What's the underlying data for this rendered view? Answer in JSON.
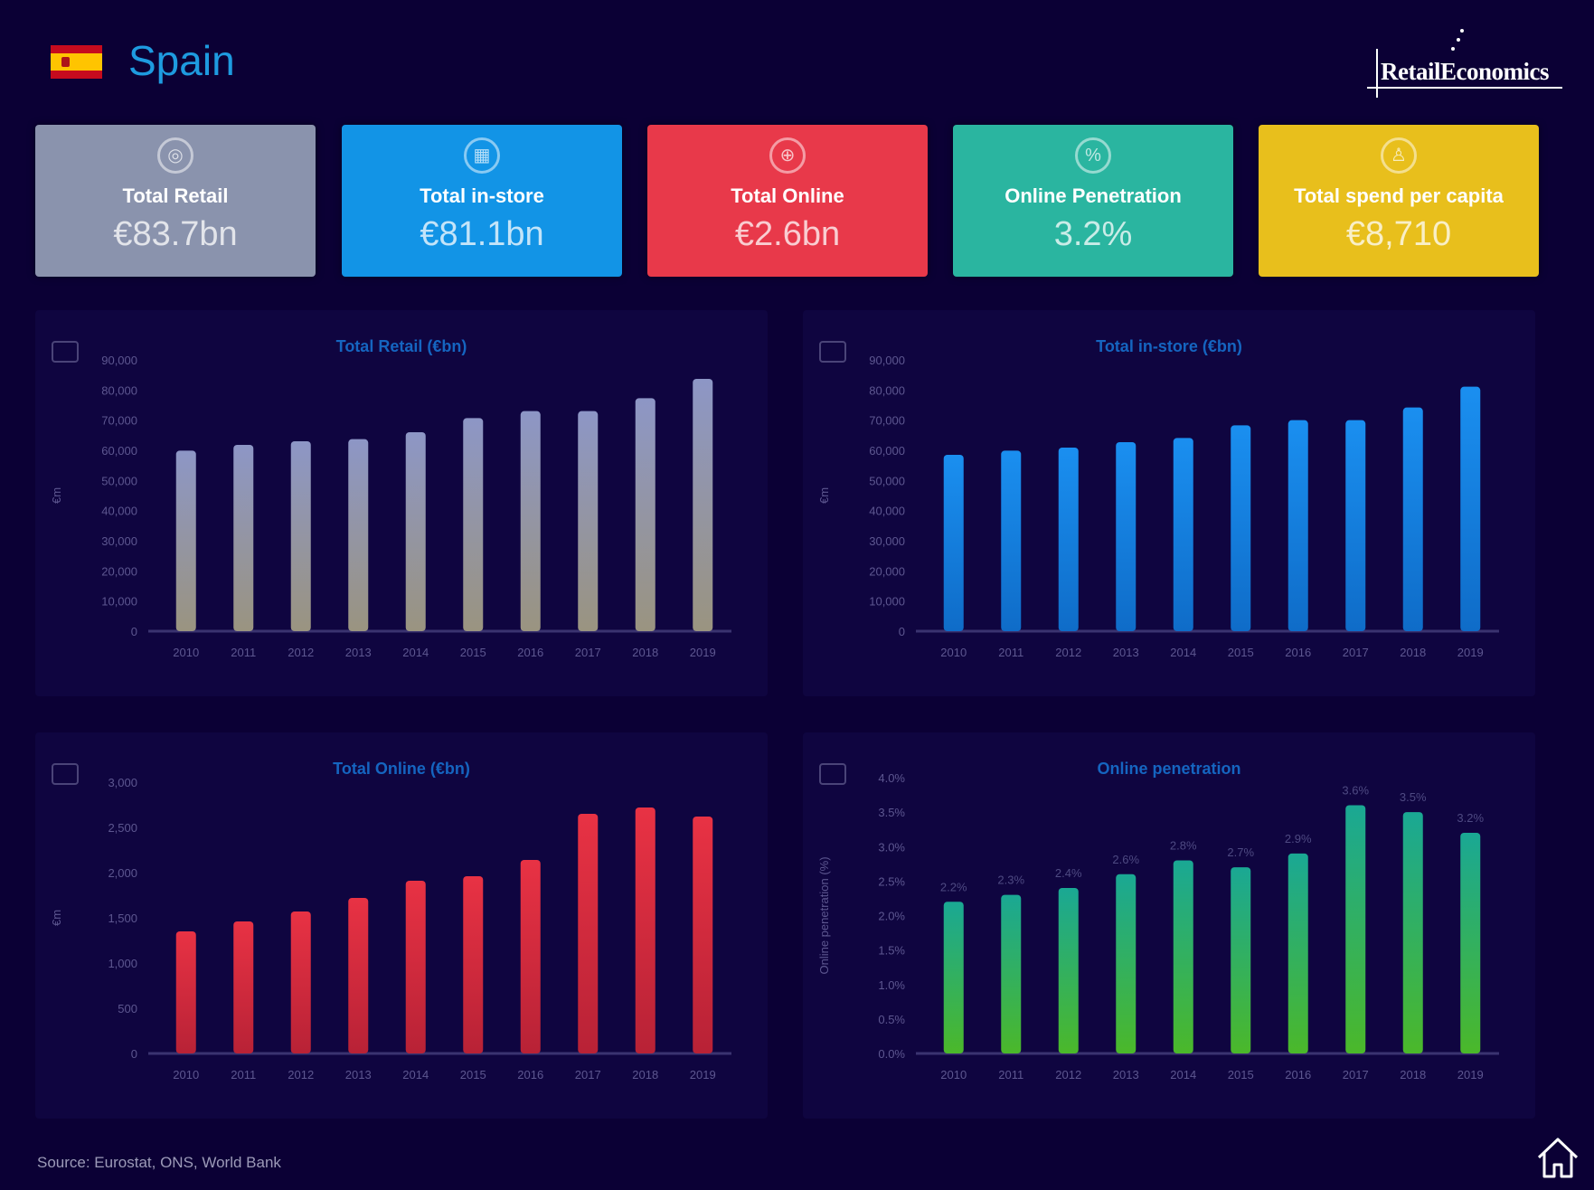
{
  "header": {
    "country": "Spain",
    "logo_text": "RetailEconomics"
  },
  "kpis": [
    {
      "label": "Total Retail",
      "value": "€83.7bn",
      "icon": "globe-icon",
      "color": "#8a93ad"
    },
    {
      "label": "Total in-store",
      "value": "€81.1bn",
      "icon": "store-icon",
      "color": "#1294e6"
    },
    {
      "label": "Total Online",
      "value": "€2.6bn",
      "icon": "cart-icon",
      "color": "#e8394a"
    },
    {
      "label": "Online Penetration",
      "value": "3.2%",
      "icon": "percent-icon",
      "color": "#2ab5a0"
    },
    {
      "label": "Total spend per capita",
      "value": "€8,710",
      "icon": "person-icon",
      "color": "#e8bf1c"
    }
  ],
  "chart_data": [
    {
      "type": "bar",
      "title": "Total Retail (€bn)",
      "ylabel": "€m",
      "ylim": [
        0,
        90000
      ],
      "ystep": 10000,
      "yfmt": "num",
      "categories": [
        "2010",
        "2011",
        "2012",
        "2013",
        "2014",
        "2015",
        "2016",
        "2017",
        "2018",
        "2019"
      ],
      "values": [
        59900,
        61800,
        63000,
        63700,
        66000,
        70700,
        73000,
        73000,
        77300,
        83700
      ],
      "color_top": "#8d96c6",
      "color_bottom": "#9a9480",
      "data_labels": false
    },
    {
      "type": "bar",
      "title": "Total in-store (€bn)",
      "ylabel": "€m",
      "ylim": [
        0,
        90000
      ],
      "ystep": 10000,
      "yfmt": "num",
      "categories": [
        "2010",
        "2011",
        "2012",
        "2013",
        "2014",
        "2015",
        "2016",
        "2017",
        "2018",
        "2019"
      ],
      "values": [
        58500,
        59900,
        60900,
        62700,
        64100,
        68300,
        70000,
        70000,
        74200,
        81100
      ],
      "color_top": "#1a8ff0",
      "color_bottom": "#0f6cc8",
      "data_labels": false
    },
    {
      "type": "bar",
      "title": "Total Online (€bn)",
      "ylabel": "€m",
      "ylim": [
        0,
        3000
      ],
      "ystep": 500,
      "yfmt": "num",
      "categories": [
        "2010",
        "2011",
        "2012",
        "2013",
        "2014",
        "2015",
        "2016",
        "2017",
        "2018",
        "2019"
      ],
      "values": [
        1350,
        1460,
        1570,
        1720,
        1910,
        1960,
        2140,
        2650,
        2720,
        2620
      ],
      "color_top": "#e83244",
      "color_bottom": "#b82236",
      "data_labels": false
    },
    {
      "type": "bar",
      "title": "Online penetration",
      "ylabel": "Online penetration (%)",
      "ylim": [
        0,
        4
      ],
      "ystep": 0.5,
      "yfmt": "pct",
      "categories": [
        "2010",
        "2011",
        "2012",
        "2013",
        "2014",
        "2015",
        "2016",
        "2017",
        "2018",
        "2019"
      ],
      "values": [
        2.2,
        2.3,
        2.4,
        2.6,
        2.8,
        2.7,
        2.9,
        3.6,
        3.5,
        3.2
      ],
      "color_top": "#1aa894",
      "color_bottom": "#4bb82a",
      "data_labels": true
    }
  ],
  "footer": {
    "source": "Source: Eurostat, ONS, World Bank"
  }
}
